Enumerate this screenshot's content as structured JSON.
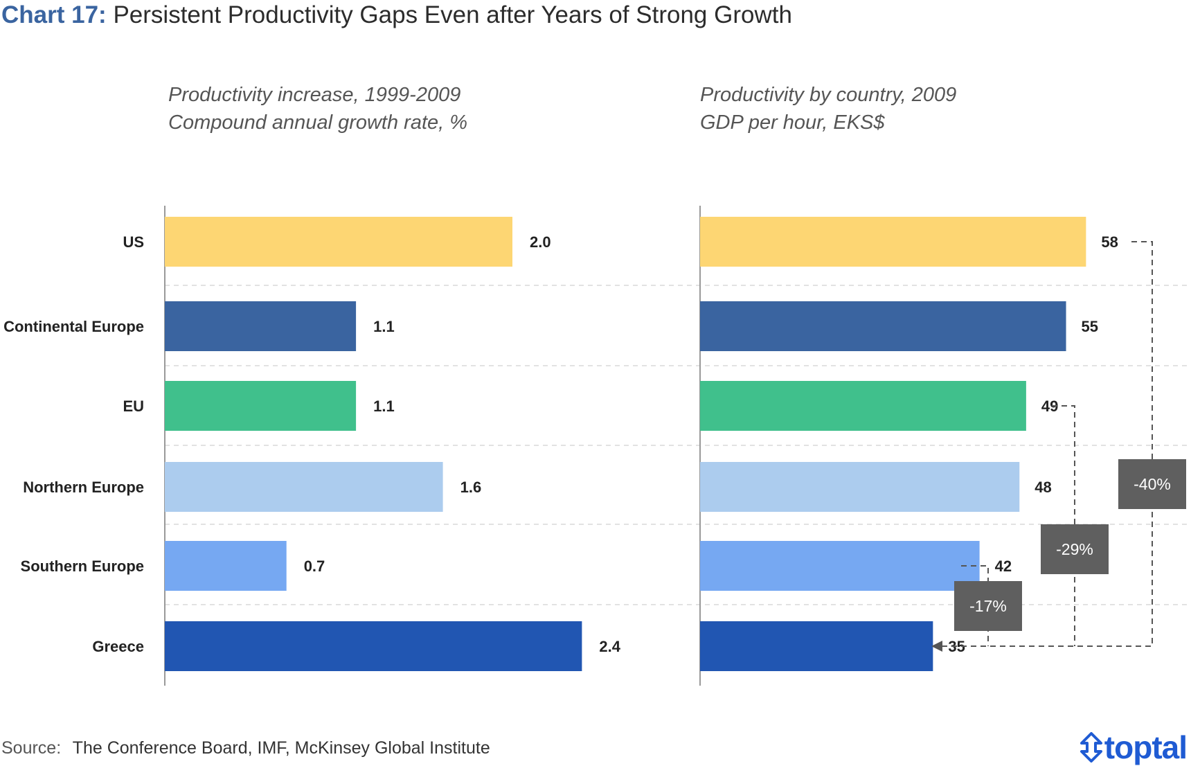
{
  "title": {
    "number": "Chart 17:",
    "text": "Persistent Productivity Gaps Even after Years of Strong Growth"
  },
  "left_panel": {
    "subtitle_line1": "Productivity increase, 1999-2009",
    "subtitle_line2": "Compound annual growth rate, %"
  },
  "right_panel": {
    "subtitle_line1": "Productivity by country, 2009",
    "subtitle_line2": "GDP per hour, EKS$"
  },
  "source": {
    "label": "Source:",
    "text": "The Conference Board, IMF, McKinsey Global Institute"
  },
  "logo": {
    "text": "toptal",
    "icon": "toptal-logo-icon"
  },
  "colors": {
    "US": "#fdd673",
    "Continental Europe": "#3a64a0",
    "EU": "#40c08c",
    "Northern Europe": "#acccee",
    "Southern Europe": "#76a8f2",
    "Greece": "#2156b2",
    "gap_box": "#5f5f5f",
    "accent": "#3a64a0"
  },
  "chart_data": [
    {
      "type": "bar",
      "orientation": "horizontal",
      "title": "Productivity increase, 1999-2009",
      "subtitle": "Compound annual growth rate, %",
      "categories": [
        "US",
        "Continental Europe",
        "EU",
        "Northern Europe",
        "Southern Europe",
        "Greece"
      ],
      "values": [
        2.0,
        1.1,
        1.1,
        1.6,
        0.7,
        2.4
      ],
      "data_labels": [
        "2.0",
        "1.1",
        "1.1",
        "1.6",
        "0.7",
        "2.4"
      ],
      "xlim": [
        0,
        2.7
      ]
    },
    {
      "type": "bar",
      "orientation": "horizontal",
      "title": "Productivity by country, 2009",
      "subtitle": "GDP per hour, EKS$",
      "categories": [
        "US",
        "Continental Europe",
        "EU",
        "Northern Europe",
        "Southern Europe",
        "Greece"
      ],
      "values": [
        58,
        55,
        49,
        48,
        42,
        35
      ],
      "data_labels": [
        "58",
        "55",
        "49",
        "48",
        "42",
        "35"
      ],
      "xlim": [
        0,
        64
      ],
      "annotations": [
        {
          "label": "-40%",
          "from": "US",
          "to": "Greece"
        },
        {
          "label": "-29%",
          "from": "EU",
          "to": "Greece"
        },
        {
          "label": "-17%",
          "from": "Southern Europe",
          "to": "Greece"
        }
      ]
    }
  ]
}
